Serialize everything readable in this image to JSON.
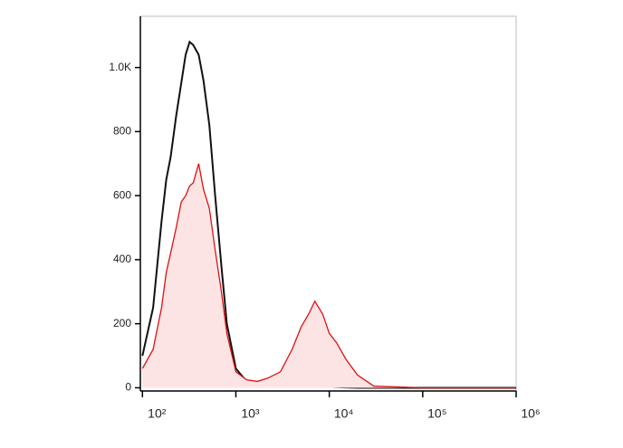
{
  "chart_data": {
    "type": "histogram-overlay",
    "x": [
      100,
      130,
      160,
      180,
      200,
      230,
      260,
      290,
      320,
      350,
      400,
      450,
      520,
      600,
      700,
      800,
      1000,
      1300,
      1700,
      2200,
      3000,
      4000,
      5000,
      6000,
      7000,
      8500,
      10000,
      12000,
      15000,
      20000,
      30000,
      100000,
      1000000
    ],
    "series": [
      {
        "color": "#111111",
        "fill": null,
        "values": [
          100,
          250,
          520,
          650,
          720,
          850,
          950,
          1040,
          1080,
          1070,
          1040,
          960,
          820,
          600,
          380,
          200,
          60,
          20,
          12,
          8,
          5,
          6,
          8,
          10,
          6,
          4,
          3,
          2,
          1,
          0,
          0,
          0,
          0
        ]
      },
      {
        "color": "#dd1111",
        "fill": "#fde4e4",
        "values": [
          60,
          120,
          250,
          360,
          420,
          500,
          580,
          600,
          630,
          640,
          700,
          620,
          560,
          430,
          300,
          170,
          50,
          25,
          20,
          30,
          50,
          120,
          190,
          230,
          270,
          230,
          170,
          140,
          90,
          40,
          5,
          0,
          0
        ]
      }
    ],
    "xscale": "log",
    "xlim": [
      95,
      1000000
    ],
    "xticks": [
      {
        "value": 100,
        "label": "10²"
      },
      {
        "value": 1000,
        "label": "10³"
      },
      {
        "value": 10000,
        "label": "10⁴"
      },
      {
        "value": 100000,
        "label": "10⁵"
      },
      {
        "value": 1000000,
        "label": "10⁶"
      }
    ],
    "ylim": [
      -10,
      1160
    ],
    "yticks": [
      0,
      200,
      400,
      600,
      800,
      {
        "value": 1000,
        "label": "1.0K"
      }
    ]
  }
}
